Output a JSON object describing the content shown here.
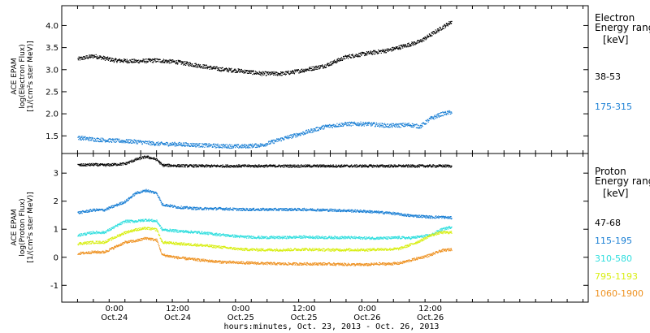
{
  "colors": {
    "black": "#000000",
    "blue": "#1a7fd4",
    "cyan": "#30dede",
    "yellow": "#d8ee12",
    "orange": "#ee9222"
  },
  "xaxis": {
    "label": "hours:minutes, Oct. 23, 2013 - Oct. 26, 2013",
    "range_hours": [
      -10,
      90
    ],
    "ticks": [
      {
        "hour": 0,
        "time": "0:00",
        "date": "Oct.24"
      },
      {
        "hour": 12,
        "time": "12:00",
        "date": "Oct.24"
      },
      {
        "hour": 24,
        "time": "0:00",
        "date": "Oct.25"
      },
      {
        "hour": 36,
        "time": "12:00",
        "date": "Oct.25"
      },
      {
        "hour": 48,
        "time": "0:00",
        "date": "Oct.26"
      },
      {
        "hour": 60,
        "time": "12:00",
        "date": "Oct.26"
      }
    ]
  },
  "chart_data": [
    {
      "type": "scatter",
      "panel": "electron",
      "ylabel": [
        "ACE EPAM",
        "log(Electron Flux)",
        "[1/(cm²s ster MeV)]"
      ],
      "ylim": [
        1.1,
        4.45
      ],
      "yticks": [
        "1.5",
        "2.0",
        "2.5",
        "3.0",
        "3.5",
        "4.0"
      ],
      "yticks_values": [
        1.5,
        2.0,
        2.5,
        3.0,
        3.5,
        4.0
      ],
      "legend_title": [
        "Electron",
        "Energy ranges",
        "[keV]"
      ],
      "x_hours": [
        -7,
        -4,
        0,
        4,
        8,
        12,
        16,
        20,
        24,
        28,
        32,
        36,
        40,
        44,
        48,
        52,
        56,
        58,
        60,
        62,
        64
      ],
      "series": [
        {
          "name": "38-53",
          "color": "black",
          "values": [
            3.25,
            3.32,
            3.22,
            3.2,
            3.22,
            3.18,
            3.1,
            3.02,
            2.98,
            2.92,
            2.92,
            3.0,
            3.1,
            3.3,
            3.38,
            3.45,
            3.58,
            3.65,
            3.8,
            3.95,
            4.1
          ]
        },
        {
          "name": "175-315",
          "color": "blue",
          "values": [
            1.47,
            1.43,
            1.4,
            1.38,
            1.33,
            1.32,
            1.3,
            1.28,
            1.27,
            1.3,
            1.45,
            1.58,
            1.72,
            1.78,
            1.78,
            1.74,
            1.76,
            1.72,
            1.9,
            2.0,
            2.05
          ]
        }
      ]
    },
    {
      "type": "scatter",
      "panel": "proton",
      "ylabel": [
        "ACE EPAM",
        "log(Proton Flux)",
        "[1/(cm²s ster MeV)]"
      ],
      "ylim": [
        -1.6,
        3.7
      ],
      "yticks": [
        "-1",
        "0",
        "1",
        "2",
        "3"
      ],
      "yticks_values": [
        -1,
        0,
        1,
        2,
        3
      ],
      "legend_title": [
        "Proton",
        "Energy ranges",
        "[keV]"
      ],
      "x_hours": [
        -7,
        -4,
        -2,
        2,
        4,
        6,
        8,
        9,
        12,
        16,
        20,
        24,
        28,
        32,
        36,
        40,
        44,
        48,
        50,
        52,
        54,
        56,
        58,
        60,
        62,
        64
      ],
      "series": [
        {
          "name": "47-68",
          "color": "black",
          "values": [
            3.3,
            3.32,
            3.3,
            3.35,
            3.5,
            3.6,
            3.5,
            3.3,
            3.28,
            3.27,
            3.27,
            3.27,
            3.27,
            3.27,
            3.27,
            3.27,
            3.27,
            3.27,
            3.27,
            3.27,
            3.27,
            3.27,
            3.27,
            3.27,
            3.27,
            3.27
          ]
        },
        {
          "name": "115-195",
          "color": "blue",
          "values": [
            1.6,
            1.7,
            1.7,
            2.0,
            2.3,
            2.4,
            2.3,
            1.9,
            1.8,
            1.75,
            1.75,
            1.72,
            1.72,
            1.72,
            1.72,
            1.7,
            1.68,
            1.65,
            1.62,
            1.6,
            1.55,
            1.5,
            1.48,
            1.45,
            1.45,
            1.42
          ]
        },
        {
          "name": "310-580",
          "color": "cyan",
          "values": [
            0.8,
            0.9,
            0.9,
            1.3,
            1.3,
            1.35,
            1.3,
            1.0,
            0.95,
            0.9,
            0.82,
            0.75,
            0.72,
            0.72,
            0.74,
            0.72,
            0.72,
            0.7,
            0.7,
            0.7,
            0.72,
            0.7,
            0.75,
            0.8,
            1.0,
            1.1
          ]
        },
        {
          "name": "795-1193",
          "color": "yellow",
          "values": [
            0.5,
            0.55,
            0.55,
            0.9,
            1.0,
            1.05,
            1.0,
            0.55,
            0.5,
            0.45,
            0.38,
            0.3,
            0.28,
            0.28,
            0.3,
            0.28,
            0.28,
            0.28,
            0.3,
            0.3,
            0.32,
            0.45,
            0.6,
            0.8,
            0.9,
            0.9
          ]
        },
        {
          "name": "1060-1900",
          "color": "orange",
          "values": [
            0.15,
            0.2,
            0.2,
            0.55,
            0.6,
            0.7,
            0.62,
            0.1,
            0.0,
            -0.08,
            -0.15,
            -0.18,
            -0.2,
            -0.22,
            -0.22,
            -0.22,
            -0.24,
            -0.25,
            -0.22,
            -0.22,
            -0.2,
            -0.1,
            0.0,
            0.1,
            0.25,
            0.3
          ]
        }
      ]
    }
  ]
}
